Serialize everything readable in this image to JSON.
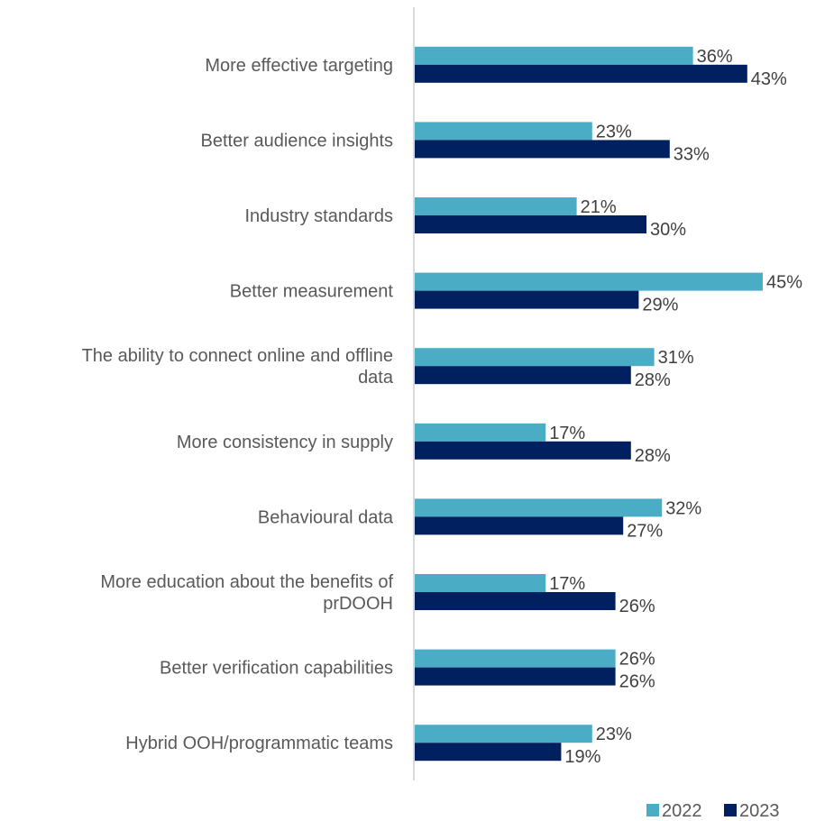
{
  "chart_data": {
    "type": "bar",
    "orientation": "horizontal",
    "categories": [
      [
        "More effective targeting"
      ],
      [
        "Better audience insights"
      ],
      [
        "Industry standards"
      ],
      [
        "Better measurement"
      ],
      [
        "The ability to connect online and offline",
        "data"
      ],
      [
        "More consistency in supply"
      ],
      [
        "Behavioural data"
      ],
      [
        "More education about the benefits of",
        "prDOOH"
      ],
      [
        "Better verification capabilities"
      ],
      [
        "Hybrid OOH/programmatic teams"
      ]
    ],
    "series": [
      {
        "name": "2022",
        "color": "#4BACC6",
        "values": [
          36,
          23,
          21,
          45,
          31,
          17,
          32,
          17,
          26,
          23
        ]
      },
      {
        "name": "2023",
        "color": "#002060",
        "values": [
          43,
          33,
          30,
          29,
          28,
          28,
          27,
          26,
          26,
          19
        ]
      }
    ],
    "value_suffix": "%",
    "xlim": [
      0,
      45
    ],
    "grid": false,
    "legend_position": "bottom-right"
  }
}
